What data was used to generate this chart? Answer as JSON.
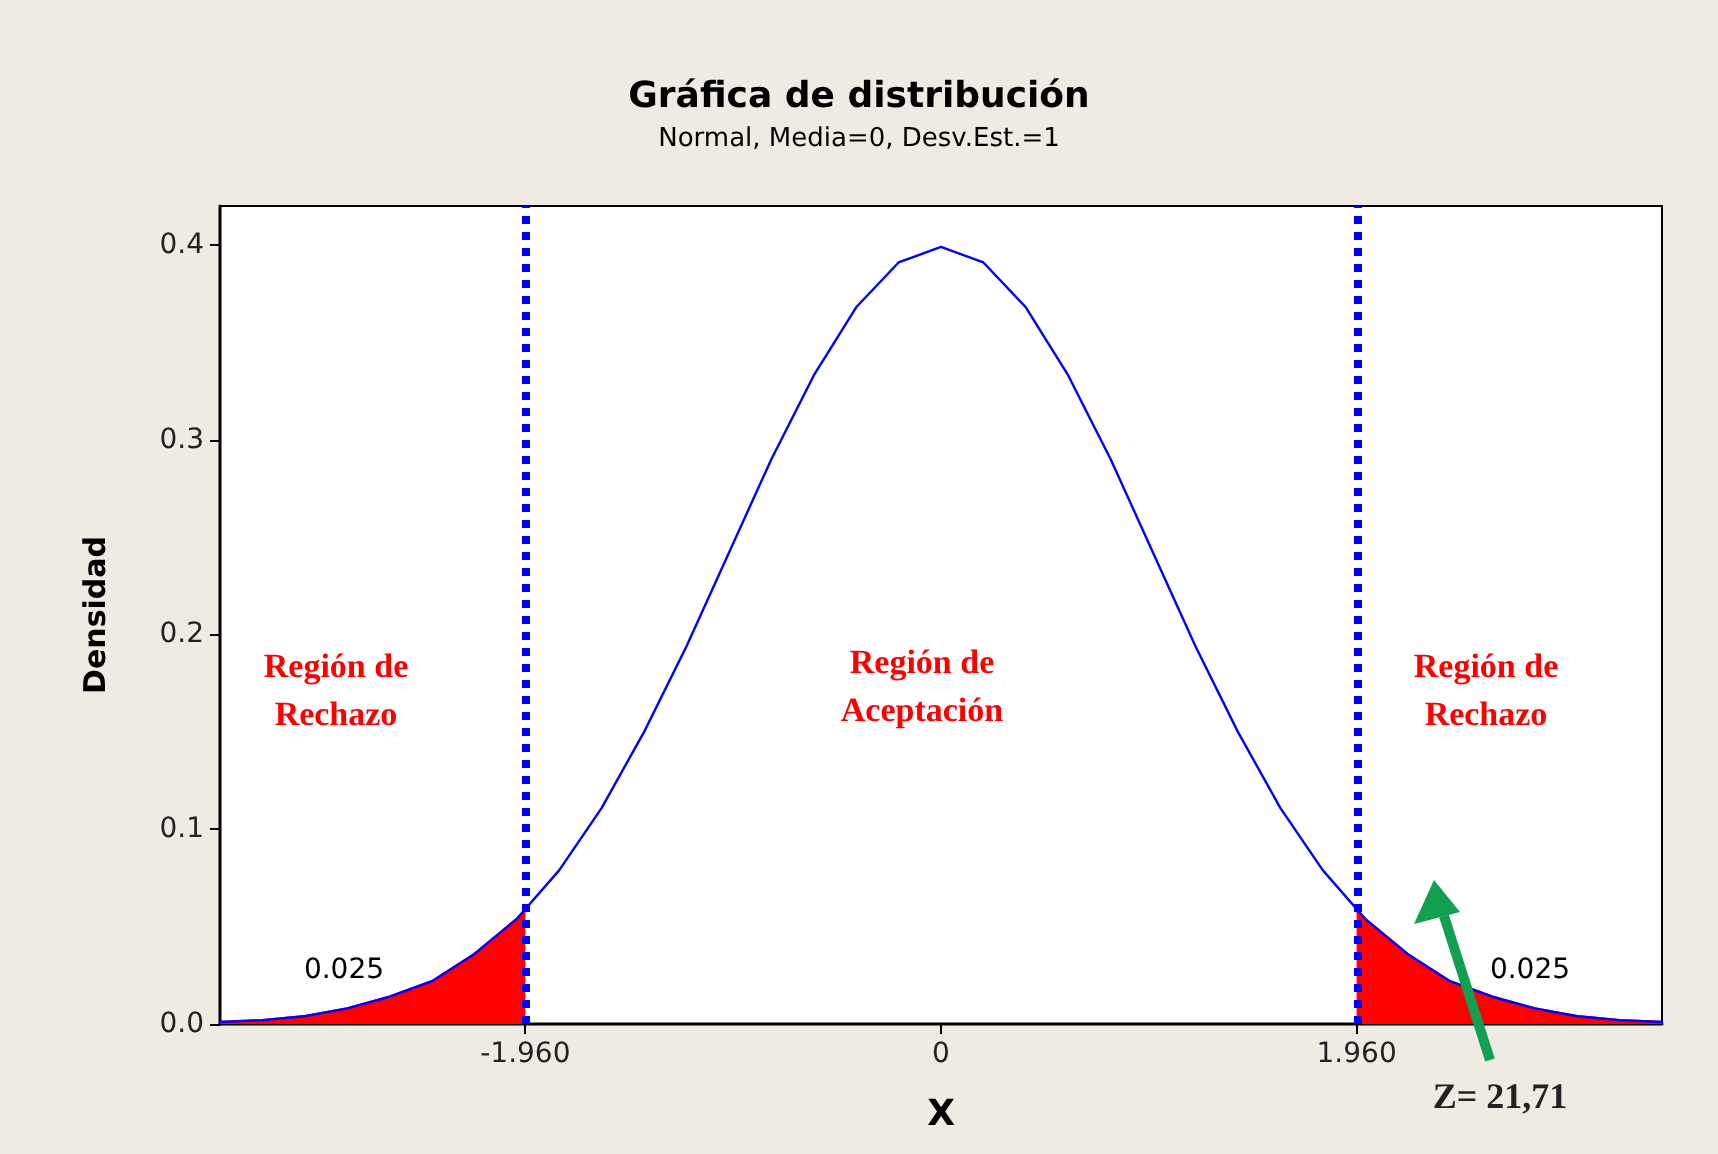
{
  "chart_data": {
    "type": "line",
    "title": "Gráfica de distribución",
    "subtitle": "Normal, Media=0, Desv.Est.=1",
    "xlabel": "X",
    "ylabel": "Densidad",
    "x": [
      -3.4,
      -3.2,
      -3.0,
      -2.8,
      -2.6,
      -2.4,
      -2.2,
      -2.0,
      -1.8,
      -1.6,
      -1.4,
      -1.2,
      -1.0,
      -0.8,
      -0.6,
      -0.4,
      -0.2,
      0,
      0.2,
      0.4,
      0.6,
      0.8,
      1.0,
      1.2,
      1.4,
      1.6,
      1.8,
      2.0,
      2.2,
      2.4,
      2.6,
      2.8,
      3.0,
      3.2,
      3.4
    ],
    "series": [
      {
        "color": "#0000ff",
        "values": [
          0.001,
          0.002,
          0.004,
          0.008,
          0.014,
          0.022,
          0.036,
          0.054,
          0.079,
          0.111,
          0.15,
          0.194,
          0.242,
          0.29,
          0.333,
          0.368,
          0.391,
          0.399,
          0.391,
          0.368,
          0.333,
          0.29,
          0.242,
          0.194,
          0.15,
          0.111,
          0.079,
          0.054,
          0.036,
          0.022,
          0.014,
          0.008,
          0.004,
          0.002,
          0.001
        ]
      },
      {
        "type": "area",
        "color": "#ff0000",
        "x": [
          -3.4,
          -3.2,
          -3.0,
          -2.8,
          -2.6,
          -2.4,
          -2.2,
          -2.0,
          -1.96
        ],
        "values": [
          0.001,
          0.002,
          0.004,
          0.008,
          0.014,
          0.022,
          0.036,
          0.054,
          0.058
        ]
      },
      {
        "type": "area",
        "color": "#ff0000",
        "x": [
          1.96,
          2.0,
          2.2,
          2.4,
          2.6,
          2.8,
          3.0,
          3.2,
          3.4
        ],
        "values": [
          0.058,
          0.054,
          0.036,
          0.022,
          0.014,
          0.008,
          0.004,
          0.002,
          0.001
        ]
      }
    ],
    "xlim": [
      -3.4,
      3.4
    ],
    "xticks": [
      {
        "value": -1.96,
        "label": "-1.960"
      },
      0,
      {
        "value": 1.96,
        "label": "1.960"
      }
    ],
    "ylim": [
      0,
      0.42
    ],
    "yticks": [
      {
        "value": 0,
        "label": "0.0"
      },
      0.1,
      0.2,
      0.3,
      0.4
    ],
    "ref_lines": [
      {
        "axis": "x",
        "value": -1.96,
        "color": "#0000ff",
        "line_style": "dotted"
      },
      {
        "axis": "x",
        "value": 1.96,
        "color": "#0000ff",
        "line_style": "dotted"
      }
    ],
    "annotations": [
      "Región de\nRechazo",
      "Región de\nAceptación",
      "Región de\nRechazo",
      "0.025",
      "0.025",
      "Z= 21,71"
    ],
    "grid": false,
    "marker": "none",
    "line_style": "solid"
  }
}
